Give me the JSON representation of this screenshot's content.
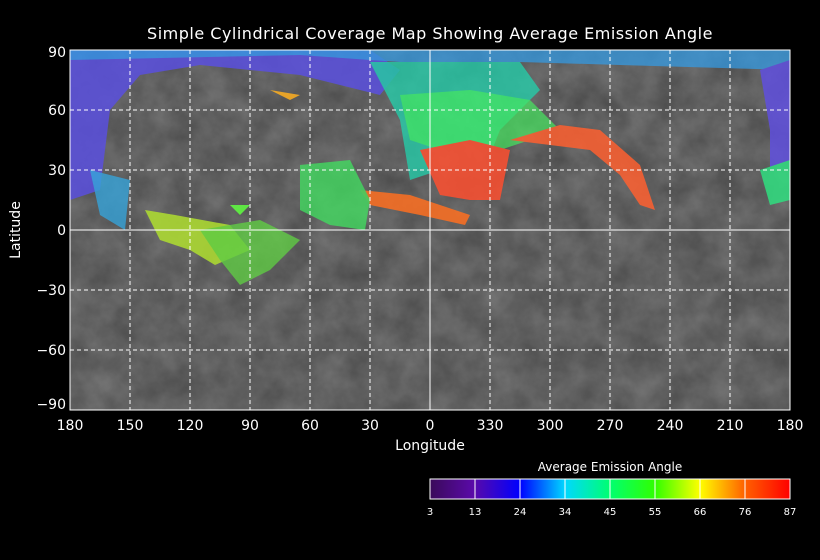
{
  "title": "Simple Cylindrical Coverage Map Showing Average Emission Angle",
  "x_axis": {
    "label": "Longitude",
    "ticks": [
      "180",
      "150",
      "120",
      "90",
      "60",
      "30",
      "0",
      "330",
      "300",
      "270",
      "240",
      "210",
      "180"
    ]
  },
  "y_axis": {
    "label": "Latitude",
    "ticks": [
      "90",
      "60",
      "30",
      "0",
      "−30",
      "−60",
      "−90"
    ]
  },
  "colorbar": {
    "title": "Average Emission Angle",
    "ticks": [
      "3",
      "13",
      "24",
      "34",
      "45",
      "55",
      "66",
      "76",
      "87"
    ],
    "colors": [
      "#3a0a6a",
      "#5a0aa8",
      "#0000ff",
      "#0090ff",
      "#00ffff",
      "#00ff60",
      "#00ff00",
      "#a0ff00",
      "#ffff00",
      "#ff8000",
      "#ff0000"
    ]
  }
}
